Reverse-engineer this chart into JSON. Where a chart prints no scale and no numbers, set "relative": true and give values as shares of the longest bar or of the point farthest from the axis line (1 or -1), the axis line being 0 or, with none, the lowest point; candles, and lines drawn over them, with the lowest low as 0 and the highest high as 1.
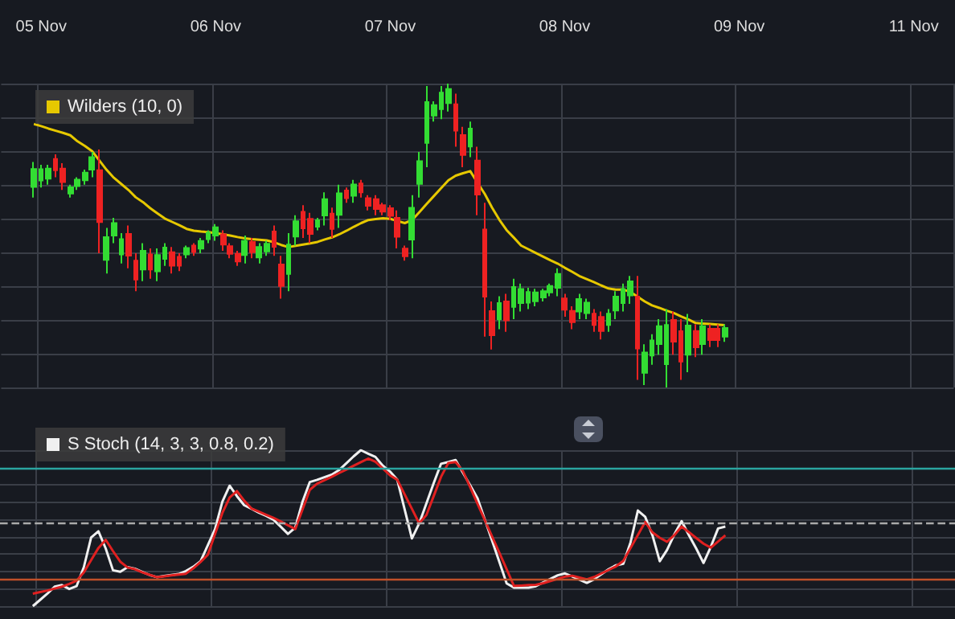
{
  "chart_data": [
    {
      "type": "candlestick",
      "relative": true,
      "grid": true,
      "legend": "top left",
      "tick_labels": "x",
      "marker": "none",
      "categories": [
        null,
        null,
        null,
        null,
        null,
        "05 Nov",
        null,
        null,
        null,
        null,
        null,
        null,
        null,
        null,
        null,
        null,
        null,
        null,
        null,
        null,
        null,
        null,
        null,
        null,
        null,
        null,
        null,
        null,
        null,
        "06 Nov",
        null,
        null,
        null,
        null,
        null,
        null,
        null,
        null,
        null,
        null,
        null,
        null,
        null,
        null,
        null,
        null,
        null,
        null,
        null,
        null,
        null,
        null,
        null,
        "07 Nov",
        null,
        null,
        null,
        null,
        null,
        null,
        null,
        null,
        null,
        null,
        null,
        null,
        null,
        null,
        null,
        null,
        null,
        null,
        null,
        null,
        null,
        null,
        null,
        "08 Nov",
        null,
        null,
        null,
        null,
        null,
        null,
        null,
        null,
        null,
        null,
        null,
        null,
        null,
        null,
        null,
        null,
        null,
        null,
        null,
        null,
        null,
        null,
        null,
        "09 Nov",
        null,
        null,
        null,
        null,
        null,
        null,
        null,
        null,
        null,
        null,
        null,
        null,
        null,
        null,
        null,
        null,
        null,
        null,
        null,
        null,
        null,
        null,
        null,
        "11 Nov",
        null,
        null,
        null,
        null,
        null
      ],
      "ohlc": [
        null,
        null,
        null,
        null,
        [
          0.66,
          0.742,
          0.625,
          0.719
        ],
        [
          0.681,
          0.733,
          0.658,
          0.718
        ],
        [
          0.687,
          0.733,
          0.667,
          0.72
        ],
        [
          0.752,
          0.767,
          0.692,
          0.715
        ],
        [
          0.72,
          0.738,
          0.65,
          0.676
        ],
        [
          0.638,
          0.667,
          0.625,
          0.659
        ],
        [
          0.663,
          0.692,
          0.65,
          0.684
        ],
        [
          0.682,
          0.717,
          0.667,
          0.707
        ],
        [
          0.717,
          0.775,
          0.692,
          0.758
        ],
        [
          0.715,
          0.783,
          0.442,
          0.544
        ],
        [
          0.42,
          0.525,
          0.375,
          0.495
        ],
        [
          0.5,
          0.558,
          0.475,
          0.541
        ],
        [
          0.438,
          0.508,
          0.408,
          0.488
        ],
        [
          0.505,
          0.533,
          0.392,
          0.434
        ],
        [
          0.417,
          0.442,
          0.317,
          0.355
        ],
        [
          0.388,
          0.475,
          0.35,
          0.45
        ],
        [
          0.438,
          0.458,
          0.358,
          0.388
        ],
        [
          0.382,
          0.458,
          0.35,
          0.436
        ],
        [
          0.423,
          0.475,
          0.4,
          0.46
        ],
        [
          0.445,
          0.462,
          0.375,
          0.401
        ],
        [
          0.43,
          0.442,
          0.383,
          0.401
        ],
        [
          0.438,
          0.467,
          0.425,
          0.459
        ],
        [
          0.467,
          0.475,
          0.433,
          0.446
        ],
        [
          0.457,
          0.492,
          0.442,
          0.482
        ],
        [
          0.488,
          0.517,
          0.475,
          0.509
        ],
        [
          0.5,
          0.538,
          0.483,
          0.527
        ],
        [
          0.504,
          0.517,
          0.45,
          0.47
        ],
        [
          0.465,
          0.475,
          0.425,
          0.44
        ],
        [
          0.44,
          0.45,
          0.4,
          0.415
        ],
        [
          0.436,
          0.5,
          0.408,
          0.482
        ],
        [
          0.479,
          0.492,
          0.425,
          0.445
        ],
        [
          0.428,
          0.475,
          0.408,
          0.462
        ],
        [
          0.448,
          0.483,
          0.433,
          0.473
        ],
        [
          0.513,
          0.533,
          0.433,
          0.463
        ],
        [
          0.405,
          0.433,
          0.292,
          0.334
        ],
        [
          0.374,
          0.508,
          0.317,
          0.47
        ],
        [
          0.497,
          0.567,
          0.467,
          0.547
        ],
        [
          0.578,
          0.6,
          0.492,
          0.524
        ],
        [
          0.555,
          0.575,
          0.475,
          0.505
        ],
        [
          0.529,
          0.558,
          0.517,
          0.55
        ],
        [
          0.566,
          0.642,
          0.533,
          0.62
        ],
        [
          0.572,
          0.592,
          0.492,
          0.522
        ],
        [
          0.568,
          0.667,
          0.525,
          0.639
        ],
        [
          0.648,
          0.658,
          0.608,
          0.623
        ],
        [
          0.631,
          0.683,
          0.608,
          0.668
        ],
        [
          0.671,
          0.683,
          0.625,
          0.642
        ],
        [
          0.623,
          0.633,
          0.583,
          0.598
        ],
        [
          0.62,
          0.633,
          0.567,
          0.587
        ],
        [
          0.6,
          0.608,
          0.567,
          0.579
        ],
        [
          0.59,
          0.6,
          0.55,
          0.565
        ],
        [
          0.558,
          0.583,
          0.458,
          0.496
        ],
        [
          0.457,
          0.467,
          0.417,
          0.432
        ],
        [
          0.487,
          0.633,
          0.425,
          0.591
        ],
        [
          0.67,
          0.775,
          0.625,
          0.745
        ],
        [
          0.805,
          0.992,
          0.725,
          0.939
        ],
        [
          0.895,
          0.942,
          0.875,
          0.929
        ],
        [
          0.916,
          0.992,
          0.883,
          0.97
        ],
        [
          0.936,
          1.0,
          0.908,
          0.982
        ],
        [
          0.932,
          0.967,
          0.792,
          0.845
        ],
        [
          0.831,
          0.858,
          0.725,
          0.765
        ],
        [
          0.793,
          0.875,
          0.758,
          0.852
        ],
        [
          0.747,
          0.792,
          0.567,
          0.635
        ],
        [
          0.52,
          0.608,
          0.167,
          0.299
        ],
        [
          0.251,
          0.283,
          0.125,
          0.172
        ],
        [
          0.224,
          0.3,
          0.192,
          0.278
        ],
        [
          0.283,
          0.308,
          0.183,
          0.221
        ],
        [
          0.265,
          0.358,
          0.225,
          0.331
        ],
        [
          0.278,
          0.342,
          0.25,
          0.324
        ],
        [
          0.279,
          0.328,
          0.258,
          0.314
        ],
        [
          0.284,
          0.325,
          0.267,
          0.313
        ],
        [
          0.296,
          0.325,
          0.283,
          0.317
        ],
        [
          0.313,
          0.342,
          0.3,
          0.334
        ],
        [
          0.328,
          0.392,
          0.3,
          0.374
        ],
        [
          0.293,
          0.308,
          0.233,
          0.256
        ],
        [
          0.252,
          0.267,
          0.192,
          0.215
        ],
        [
          0.25,
          0.308,
          0.225,
          0.291
        ],
        [
          0.245,
          0.292,
          0.225,
          0.279
        ],
        [
          0.243,
          0.258,
          0.183,
          0.206
        ],
        [
          0.232,
          0.25,
          0.158,
          0.186
        ],
        [
          0.206,
          0.258,
          0.183,
          0.243
        ],
        [
          0.253,
          0.317,
          0.225,
          0.299
        ],
        [
          0.278,
          0.342,
          0.25,
          0.324
        ],
        [
          0.303,
          0.367,
          0.275,
          0.349
        ],
        [
          0.299,
          0.367,
          0.025,
          0.128
        ],
        [
          0.048,
          0.142,
          0.008,
          0.115
        ],
        [
          0.105,
          0.175,
          0.075,
          0.155
        ],
        [
          0.143,
          0.225,
          0.108,
          0.202
        ],
        [
          0.077,
          0.258,
          0,
          0.206
        ],
        [
          0.222,
          0.25,
          0.108,
          0.151
        ],
        [
          0.185,
          0.225,
          0.025,
          0.085
        ],
        [
          0.108,
          0.242,
          0.05,
          0.204
        ],
        [
          0.186,
          0.208,
          0.1,
          0.132
        ],
        [
          0.143,
          0.225,
          0.108,
          0.202
        ],
        [
          0.193,
          0.208,
          0.133,
          0.156
        ],
        [
          0.193,
          0.208,
          0.133,
          0.156
        ],
        [
          0.167,
          0.208,
          0.15,
          0.196
        ],
        null,
        null,
        null,
        null,
        null,
        null,
        null,
        null,
        null,
        null,
        null,
        null,
        null,
        null,
        null,
        null,
        null,
        null,
        null,
        null,
        null,
        null,
        null,
        null,
        null,
        null,
        null,
        null,
        null,
        null,
        null
      ],
      "colors": [
        null,
        null,
        null,
        null,
        "#33dd33",
        "#33dd33",
        "#33dd33",
        "#ee2222",
        "#ee2222",
        "#33dd33",
        "#33dd33",
        "#33dd33",
        "#33dd33",
        "#ee2222",
        "#33dd33",
        "#33dd33",
        "#33dd33",
        "#ee2222",
        "#ee2222",
        "#33dd33",
        "#ee2222",
        "#33dd33",
        "#33dd33",
        "#ee2222",
        "#ee2222",
        "#33dd33",
        "#ee2222",
        "#33dd33",
        "#33dd33",
        "#33dd33",
        "#ee2222",
        "#ee2222",
        "#ee2222",
        "#33dd33",
        "#ee2222",
        "#33dd33",
        "#33dd33",
        "#ee2222",
        "#ee2222",
        "#33dd33",
        "#33dd33",
        "#ee2222",
        "#ee2222",
        "#33dd33",
        "#33dd33",
        "#ee2222",
        "#33dd33",
        "#ee2222",
        "#33dd33",
        "#ee2222",
        "#ee2222",
        "#ee2222",
        "#ee2222",
        "#ee2222",
        "#ee2222",
        "#ee2222",
        "#33dd33",
        "#33dd33",
        "#33dd33",
        "#33dd33",
        "#33dd33",
        "#33dd33",
        "#ee2222",
        "#ee2222",
        "#33dd33",
        "#ee2222",
        "#ee2222",
        "#ee2222",
        "#33dd33",
        "#ee2222",
        "#33dd33",
        "#33dd33",
        "#33dd33",
        "#33dd33",
        "#33dd33",
        "#33dd33",
        "#33dd33",
        "#ee2222",
        "#ee2222",
        "#33dd33",
        "#33dd33",
        "#ee2222",
        "#ee2222",
        "#33dd33",
        "#33dd33",
        "#33dd33",
        "#33dd33",
        "#ee2222",
        "#33dd33",
        "#33dd33",
        "#33dd33",
        "#33dd33",
        "#ee2222",
        "#ee2222",
        "#33dd33",
        "#ee2222",
        "#33dd33",
        "#ee2222",
        "#ee2222",
        "#33dd33",
        null,
        null,
        null,
        null,
        null,
        null,
        null,
        null,
        null,
        null,
        null,
        null,
        null,
        null,
        null,
        null,
        null,
        null,
        null,
        null,
        null,
        null,
        null,
        null,
        null,
        null,
        null,
        null,
        null,
        null,
        null
      ],
      "series": [
        {
          "type": "line",
          "name": "Wilders (10, 0)",
          "color": "#e6c800",
          "values": [
            null,
            null,
            null,
            null,
            0.867,
            0.86,
            0.852,
            0.845,
            0.838,
            0.83,
            0.81,
            0.795,
            0.778,
            0.747,
            0.716,
            0.69,
            0.67,
            0.65,
            0.626,
            0.61,
            0.59,
            0.573,
            0.556,
            0.545,
            0.534,
            0.522,
            0.516,
            0.513,
            0.511,
            0.508,
            0.504,
            0.5,
            0.495,
            0.491,
            0.488,
            0.486,
            0.484,
            0.478,
            0.469,
            0.462,
            0.466,
            0.47,
            0.474,
            0.479,
            0.487,
            0.494,
            0.504,
            0.516,
            0.529,
            0.541,
            0.551,
            0.554,
            0.557,
            0.555,
            0.548,
            0.541,
            0.551,
            0.577,
            0.604,
            0.63,
            0.656,
            0.682,
            0.697,
            0.705,
            0.712,
            0.674,
            0.637,
            0.592,
            0.552,
            0.518,
            0.493,
            0.467,
            0.455,
            0.443,
            0.431,
            0.419,
            0.408,
            0.394,
            0.381,
            0.367,
            0.357,
            0.347,
            0.336,
            0.326,
            0.322,
            0.322,
            0.315,
            0.299,
            0.283,
            0.27,
            0.262,
            0.253,
            0.245,
            0.234,
            0.224,
            0.212,
            0.21,
            0.209,
            0.207,
            0.205,
            null,
            null,
            null,
            null,
            null,
            null,
            null,
            null,
            null,
            null,
            null,
            null,
            null,
            null,
            null,
            null,
            null,
            null,
            null,
            null,
            null,
            null,
            null,
            null,
            null,
            null,
            null,
            null,
            null,
            null,
            null
          ]
        }
      ]
    },
    {
      "type": "line",
      "relative": true,
      "grid": true,
      "legend": "top left",
      "tick_labels": false,
      "marker": "none",
      "categories": [
        null,
        null,
        null,
        null,
        null,
        null,
        null,
        null,
        null,
        null,
        null,
        null,
        null,
        null,
        null,
        null,
        null,
        null,
        null,
        null,
        null,
        null,
        null,
        null,
        null,
        null,
        null,
        null,
        null,
        null,
        null,
        null,
        null,
        null,
        null,
        null,
        null,
        null,
        null,
        null,
        null,
        null,
        null,
        null,
        null,
        null,
        null,
        null,
        null,
        null,
        null,
        null,
        null,
        null,
        null,
        null,
        null,
        null,
        null,
        null,
        null,
        null,
        null,
        null,
        null,
        null,
        null,
        null,
        null,
        null,
        null,
        null,
        null,
        null,
        null,
        null,
        null,
        null,
        null,
        null,
        null,
        null,
        null,
        null,
        null,
        null,
        null,
        null,
        null,
        null,
        null,
        null,
        null,
        null,
        null,
        null,
        null,
        null,
        null,
        null,
        null,
        null,
        null,
        null,
        null,
        null,
        null,
        null,
        null,
        null,
        null,
        null,
        null,
        null,
        null,
        null,
        null,
        null,
        null,
        null,
        null,
        null,
        null,
        null,
        null,
        null,
        null,
        null,
        null,
        null,
        null
      ],
      "series": [
        {
          "name": "S Stoch (14, 3, 3, 0.8, 0.2)",
          "color": "#f0f0f0",
          "values": [
            null,
            null,
            null,
            null,
            0,
            0.04,
            0.08,
            0.125,
            0.135,
            0.11,
            0.128,
            0.25,
            0.44,
            0.48,
            0.37,
            0.23,
            0.22,
            0.25,
            0.24,
            0.22,
            0.2,
            0.186,
            0.193,
            0.2,
            0.206,
            0.225,
            0.252,
            0.287,
            0.39,
            0.494,
            0.67,
            0.772,
            0.705,
            0.647,
            0.624,
            0.6,
            0.579,
            0.555,
            0.51,
            0.463,
            0.503,
            0.67,
            0.796,
            0.81,
            0.827,
            0.843,
            0.872,
            0.916,
            0.96,
            1.0,
            0.978,
            0.957,
            0.901,
            0.863,
            0.81,
            0.622,
            0.434,
            0.53,
            0.66,
            0.79,
            0.913,
            0.924,
            0.937,
            0.855,
            0.774,
            0.692,
            0.556,
            0.42,
            0.283,
            0.146,
            0.119,
            0.119,
            0.119,
            0.128,
            0.152,
            0.175,
            0.198,
            0.21,
            0.19,
            0.17,
            0.149,
            0.172,
            0.205,
            0.237,
            0.262,
            0.272,
            0.41,
            0.613,
            0.573,
            0.454,
            0.288,
            0.36,
            0.46,
            0.545,
            0.455,
            0.37,
            0.277,
            0.38,
            0.498,
            0.51,
            null,
            null,
            null,
            null,
            null,
            null,
            null,
            null,
            null,
            null,
            null,
            null,
            null,
            null,
            null,
            null,
            null,
            null,
            null,
            null,
            null,
            null,
            null,
            null,
            null,
            null,
            null,
            null,
            null,
            null,
            null
          ]
        },
        {
          "color": "#e02020",
          "values": [
            null,
            null,
            null,
            null,
            0.08,
            0.09,
            0.1,
            0.113,
            0.125,
            0.142,
            0.163,
            0.217,
            0.295,
            0.373,
            0.425,
            0.353,
            0.285,
            0.248,
            0.237,
            0.217,
            0.201,
            0.186,
            0.191,
            0.197,
            0.202,
            0.208,
            0.242,
            0.283,
            0.329,
            0.463,
            0.597,
            0.696,
            0.738,
            0.676,
            0.626,
            0.606,
            0.586,
            0.566,
            0.543,
            0.519,
            0.494,
            0.62,
            0.746,
            0.785,
            0.807,
            0.829,
            0.853,
            0.876,
            0.9,
            0.923,
            0.946,
            0.926,
            0.883,
            0.839,
            0.81,
            0.717,
            0.624,
            0.531,
            0.585,
            0.707,
            0.829,
            0.918,
            0.924,
            0.866,
            0.762,
            0.657,
            0.552,
            0.447,
            0.342,
            0.236,
            0.13,
            0.132,
            0.135,
            0.137,
            0.147,
            0.161,
            0.175,
            0.189,
            0.195,
            0.183,
            0.172,
            0.187,
            0.21,
            0.232,
            0.255,
            0.29,
            0.373,
            0.456,
            0.54,
            0.473,
            0.438,
            0.413,
            0.455,
            0.51,
            0.474,
            0.437,
            0.401,
            0.375,
            0.414,
            0.454,
            null,
            null,
            null,
            null,
            null,
            null,
            null,
            null,
            null,
            null,
            null,
            null,
            null,
            null,
            null,
            null,
            null,
            null,
            null,
            null,
            null,
            null,
            null,
            null,
            null,
            null,
            null,
            null,
            null,
            null,
            null
          ]
        }
      ],
      "ref_lines": [
        {
          "axis": "y",
          "value": 0.882,
          "color": "#2aa5a0"
        },
        {
          "axis": "y",
          "value": 0.527,
          "color": "#aaaaaa",
          "line_style": "dashed"
        },
        {
          "axis": "y",
          "value": 0.17,
          "color": "#c0502a"
        }
      ]
    }
  ]
}
